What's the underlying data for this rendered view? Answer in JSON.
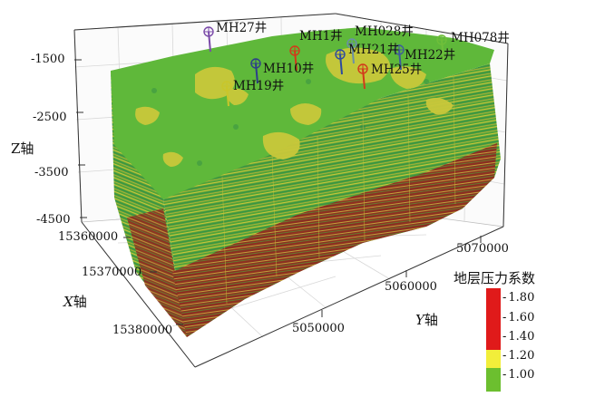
{
  "axes": {
    "z_title": "Z轴",
    "x_title_var": "X",
    "x_title_suffix": "轴",
    "y_title_var": "Y",
    "y_title_suffix": "轴",
    "z_ticks": [
      "-1500",
      "-2500",
      "-3500",
      "-4500"
    ],
    "x_ticks": [
      "15360000",
      "15370000",
      "15380000"
    ],
    "y_ticks": [
      "5050000",
      "5060000",
      "5070000"
    ]
  },
  "wells": [
    {
      "name": "MH27井",
      "color": "#7a4aa8"
    },
    {
      "name": "MH1井",
      "color": "#d23a1a"
    },
    {
      "name": "MH028井",
      "color": "#6a8fa8"
    },
    {
      "name": "MH078井",
      "color": "#6fbf3a"
    },
    {
      "name": "MH21井",
      "color": "#2c4aa0"
    },
    {
      "name": "MH22井",
      "color": "#3d5b9c"
    },
    {
      "name": "MH10井",
      "color": "#2d3e8a"
    },
    {
      "name": "MH25井",
      "color": "#d23a1a"
    },
    {
      "name": "MH19井",
      "color": "#c9c62a"
    }
  ],
  "legend": {
    "title": "地层压力系数",
    "ticks": [
      "1.80",
      "1.60",
      "1.40",
      "1.20",
      "1.00"
    ],
    "colors": {
      "high": "#e01a1a",
      "mid": "#f2ee3a",
      "low": "#6cbf2f"
    }
  }
}
